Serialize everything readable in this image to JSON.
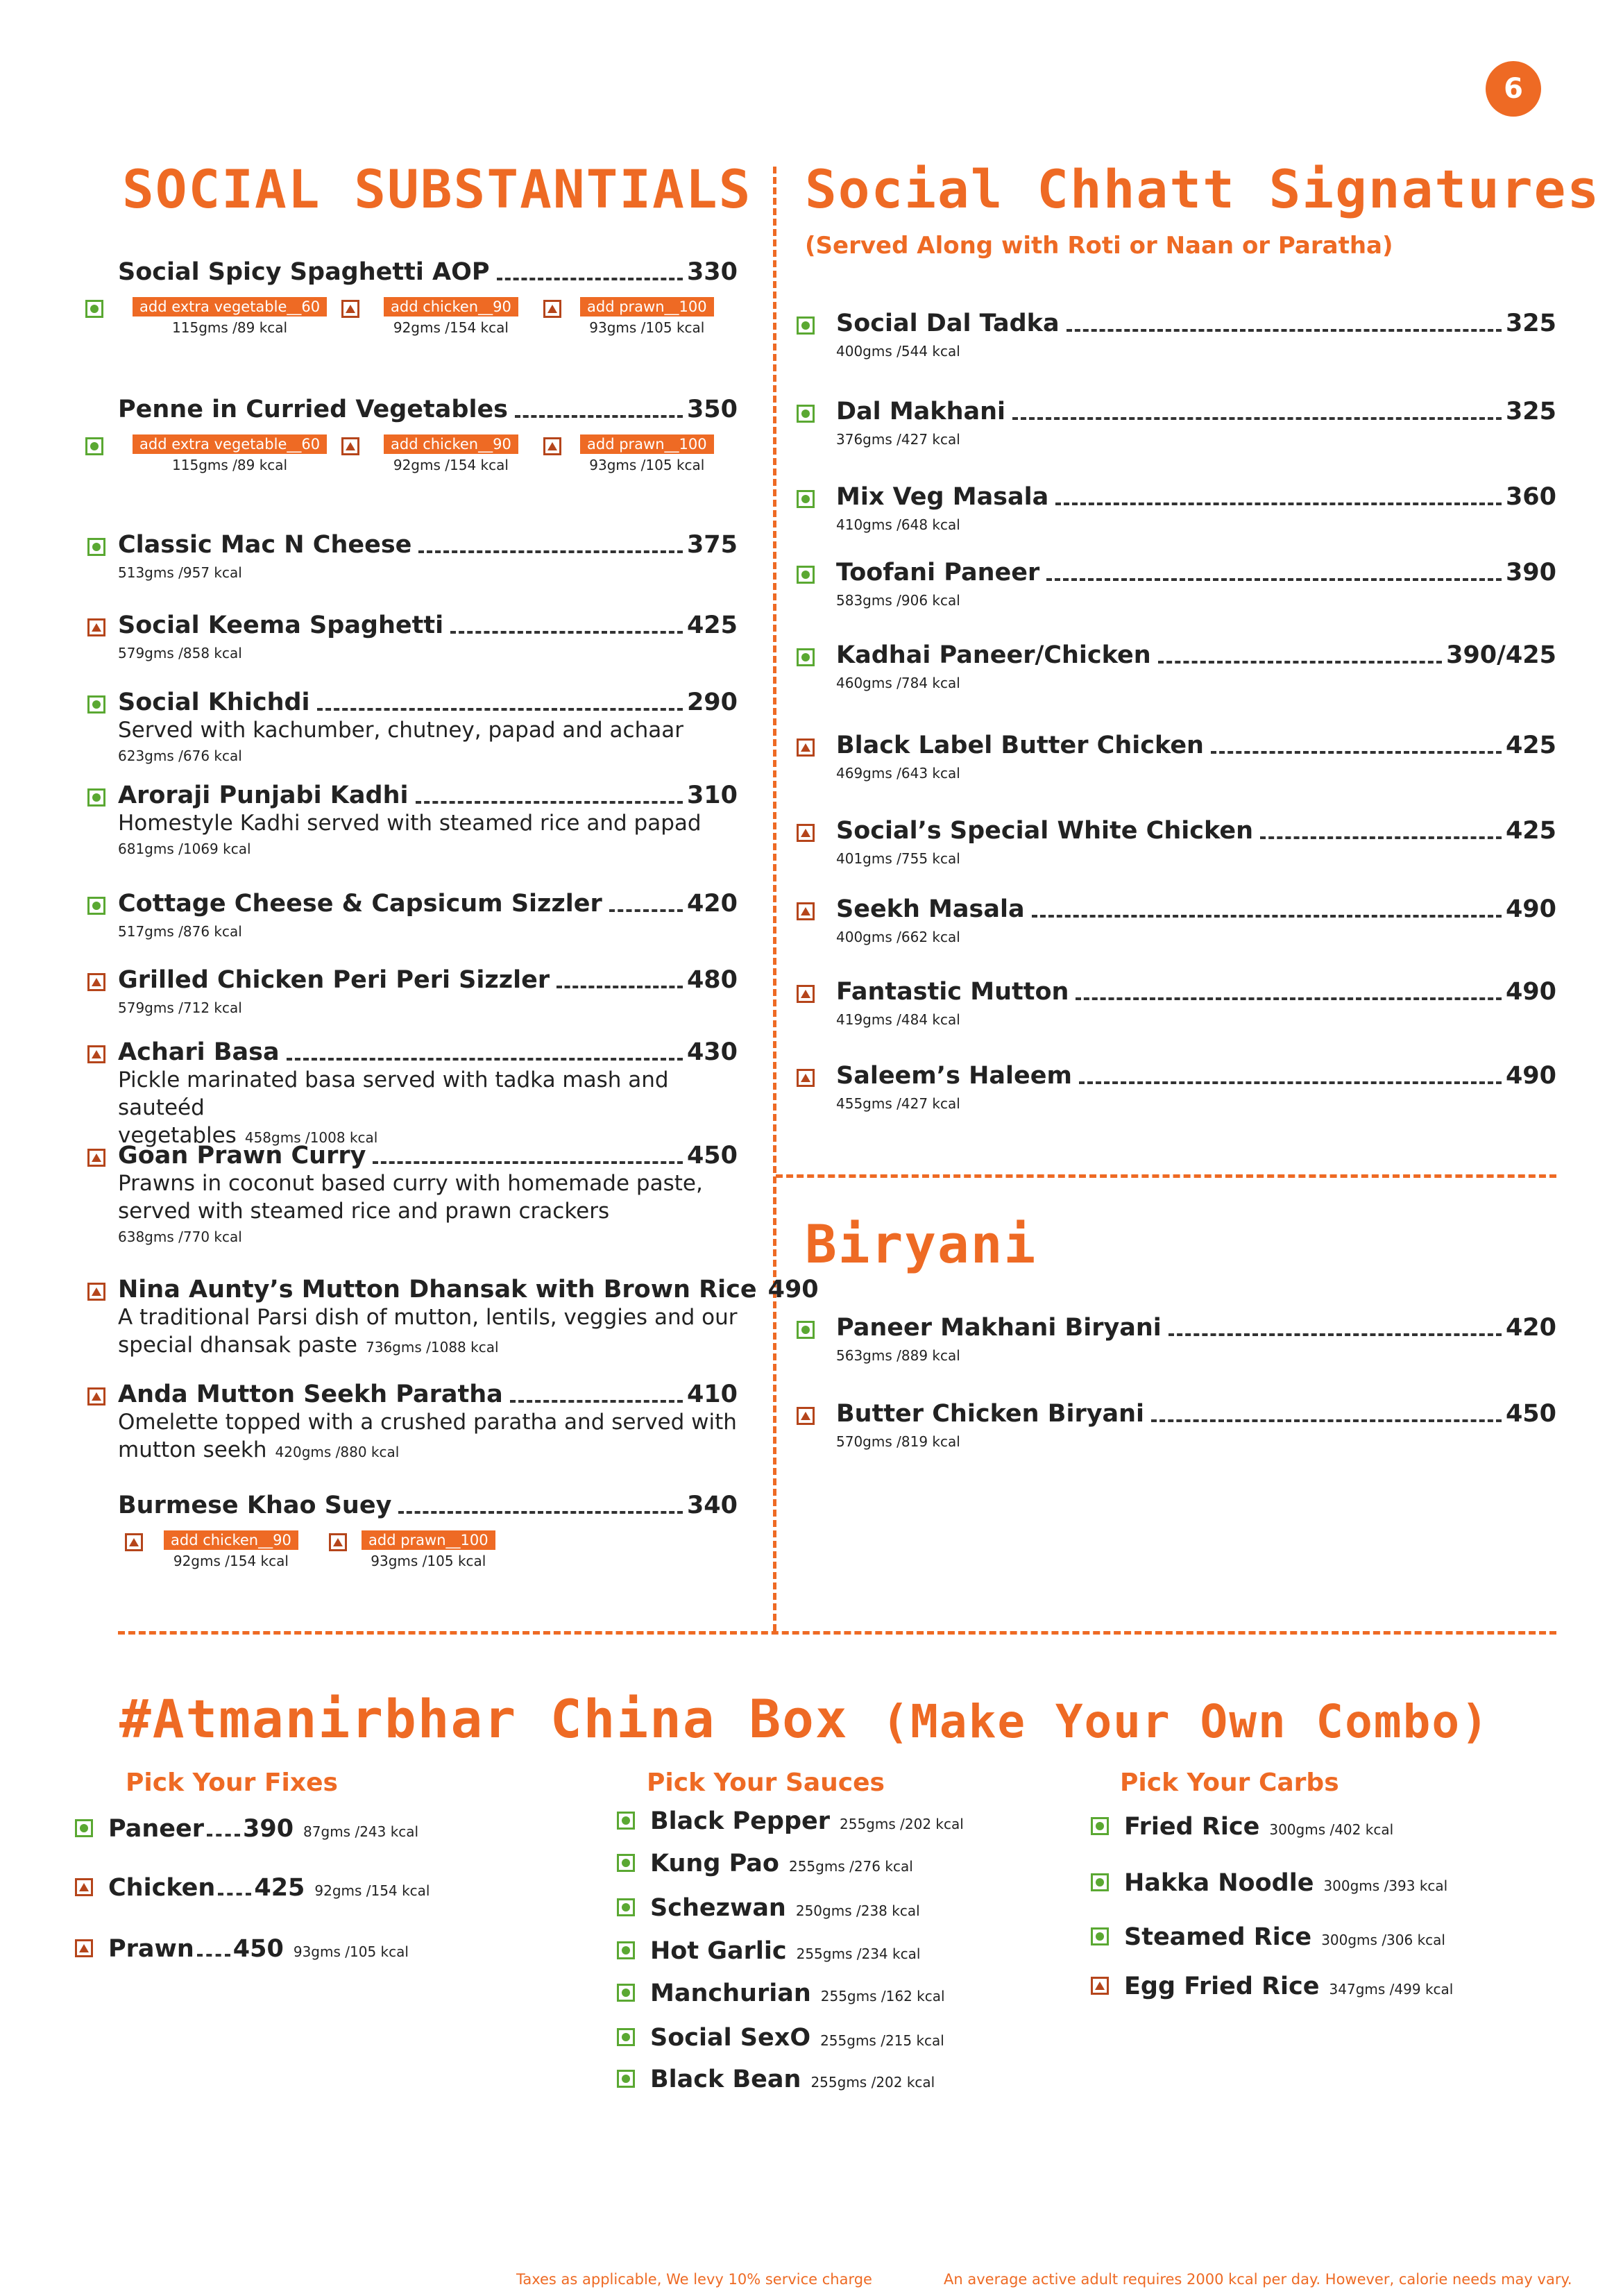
{
  "page_number": "6",
  "substantials": {
    "title": "SOCIAL SUBSTANTIALS",
    "items": [
      {
        "name": "Social Spicy Spaghetti AOP",
        "price": 330,
        "addons": [
          {
            "label": "add extra vegetable__60",
            "info": "115gms /89 kcal",
            "veg": true
          },
          {
            "label": "add chicken__90",
            "info": "92gms /154 kcal",
            "veg": false
          },
          {
            "label": "add prawn__100",
            "info": "93gms /105 kcal",
            "veg": false
          }
        ]
      },
      {
        "name": "Penne in Curried Vegetables",
        "price": 350,
        "addons": [
          {
            "label": "add extra vegetable__60",
            "info": "115gms /89 kcal",
            "veg": true
          },
          {
            "label": "add chicken__90",
            "info": "92gms /154 kcal",
            "veg": false
          },
          {
            "label": "add prawn__100",
            "info": "93gms /105 kcal",
            "veg": false
          }
        ]
      },
      {
        "name": "Classic Mac N Cheese",
        "price": 375,
        "veg": true,
        "info": "513gms /957 kcal"
      },
      {
        "name": "Social Keema Spaghetti",
        "price": 425,
        "veg": false,
        "info": "579gms /858 kcal"
      },
      {
        "name": "Social Khichdi",
        "price": 290,
        "veg": true,
        "desc": [
          "Served with kachumber, chutney, papad and achaar"
        ],
        "info": "623gms /676 kcal"
      },
      {
        "name": "Aroraji Punjabi Kadhi",
        "price": 310,
        "veg": true,
        "desc": [
          "Homestyle Kadhi served with steamed rice and papad"
        ],
        "info": "681gms /1069 kcal"
      },
      {
        "name": "Cottage Cheese & Capsicum Sizzler",
        "price": 420,
        "veg": true,
        "info": "517gms /876 kcal"
      },
      {
        "name": "Grilled Chicken Peri Peri Sizzler",
        "price": 480,
        "veg": false,
        "info": "579gms /712 kcal"
      },
      {
        "name": "Achari Basa",
        "price": 430,
        "veg": false,
        "desc": [
          "Pickle marinated basa served with tadka mash and sauteéd",
          "vegetables"
        ],
        "info": "458gms /1008 kcal"
      },
      {
        "name": "Goan Prawn Curry",
        "price": 450,
        "veg": false,
        "desc": [
          "Prawns in coconut based curry with homemade paste,",
          "served with steamed rice and prawn crackers"
        ],
        "info": "638gms /770 kcal"
      },
      {
        "name": "Nina Aunty’s Mutton Dhansak with Brown Rice",
        "price": 490,
        "veg": false,
        "desc": [
          "A traditional Parsi dish of mutton, lentils, veggies and our",
          "special dhansak paste"
        ],
        "info": "736gms /1088 kcal"
      },
      {
        "name": "Anda Mutton Seekh Paratha",
        "price": 410,
        "veg": false,
        "desc": [
          "Omelette topped with a crushed paratha and served with",
          "mutton seekh"
        ],
        "info": "420gms /880 kcal"
      },
      {
        "name": "Burmese Khao Suey",
        "price": 340,
        "addons": [
          {
            "label": "add chicken__90",
            "info": "92gms /154 kcal",
            "veg": false
          },
          {
            "label": "add prawn__100",
            "info": "93gms /105 kcal",
            "veg": false
          }
        ]
      }
    ]
  },
  "signatures": {
    "title": "Social Chhatt Signatures",
    "subtitle": "(Served Along with Roti or Naan or Paratha)",
    "items": [
      {
        "name": "Social Dal Tadka",
        "price": 325,
        "veg": true,
        "info": "400gms /544 kcal"
      },
      {
        "name": "Dal Makhani",
        "price": 325,
        "veg": true,
        "info": "376gms /427 kcal"
      },
      {
        "name": "Mix Veg  Masala",
        "price": 360,
        "veg": true,
        "info": "410gms /648 kcal"
      },
      {
        "name": "Toofani Paneer",
        "price": 390,
        "veg": true,
        "info": "583gms /906 kcal"
      },
      {
        "name": "Kadhai Paneer/Chicken",
        "price": "390/425",
        "veg": true,
        "info": "460gms /784 kcal"
      },
      {
        "name": "Black Label Butter Chicken",
        "price": 425,
        "veg": false,
        "info": "469gms /643 kcal"
      },
      {
        "name": "Social’s Special White Chicken",
        "price": 425,
        "veg": false,
        "info": "401gms /755 kcal"
      },
      {
        "name": "Seekh Masala",
        "price": 490,
        "veg": false,
        "info": "400gms /662 kcal"
      },
      {
        "name": "Fantastic Mutton",
        "price": 490,
        "veg": false,
        "info": "419gms /484 kcal"
      },
      {
        "name": "Saleem’s Haleem",
        "price": 490,
        "veg": false,
        "info": "455gms /427 kcal"
      }
    ]
  },
  "biryani": {
    "title": "Biryani",
    "items": [
      {
        "name": "Paneer Makhani Biryani",
        "price": 420,
        "veg": true,
        "info": "563gms /889 kcal"
      },
      {
        "name": "Butter Chicken Biryani",
        "price": 450,
        "veg": false,
        "info": "570gms /819 kcal"
      }
    ]
  },
  "china_box": {
    "title": "#Atmanirbhar China Box",
    "subtitle": "(Make Your Own Combo)",
    "columns": [
      {
        "title": "Pick Your Fixes",
        "items": [
          {
            "name": "Paneer",
            "price": 390,
            "veg": true,
            "info": "87gms /243 kcal"
          },
          {
            "name": "Chicken",
            "price": 425,
            "veg": false,
            "info": "92gms /154 kcal"
          },
          {
            "name": "Prawn",
            "price": 450,
            "veg": false,
            "info": "93gms /105 kcal"
          }
        ]
      },
      {
        "title": "Pick Your Sauces",
        "items": [
          {
            "name": "Black Pepper",
            "veg": true,
            "info": "255gms /202 kcal"
          },
          {
            "name": "Kung Pao",
            "veg": true,
            "info": "255gms /276 kcal"
          },
          {
            "name": "Schezwan",
            "veg": true,
            "info": "250gms /238 kcal"
          },
          {
            "name": "Hot Garlic",
            "veg": true,
            "info": "255gms /234 kcal"
          },
          {
            "name": "Manchurian",
            "veg": true,
            "info": "255gms /162 kcal"
          },
          {
            "name": "Social SexO",
            "veg": true,
            "info": "255gms /215 kcal"
          },
          {
            "name": "Black Bean",
            "veg": true,
            "info": "255gms /202 kcal"
          }
        ]
      },
      {
        "title": "Pick Your Carbs",
        "items": [
          {
            "name": "Fried Rice",
            "veg": true,
            "info": "300gms /402 kcal"
          },
          {
            "name": "Hakka Noodle",
            "veg": true,
            "info": "300gms /393 kcal"
          },
          {
            "name": "Steamed Rice",
            "veg": true,
            "info": "300gms /306 kcal"
          },
          {
            "name": "Egg Fried Rice",
            "veg": false,
            "info": "347gms /499 kcal"
          }
        ]
      }
    ]
  },
  "footer": {
    "left": "Taxes as applicable, We levy 10% service charge",
    "right": "An average active adult requires 2000 kcal per day. However, calorie needs may vary."
  }
}
